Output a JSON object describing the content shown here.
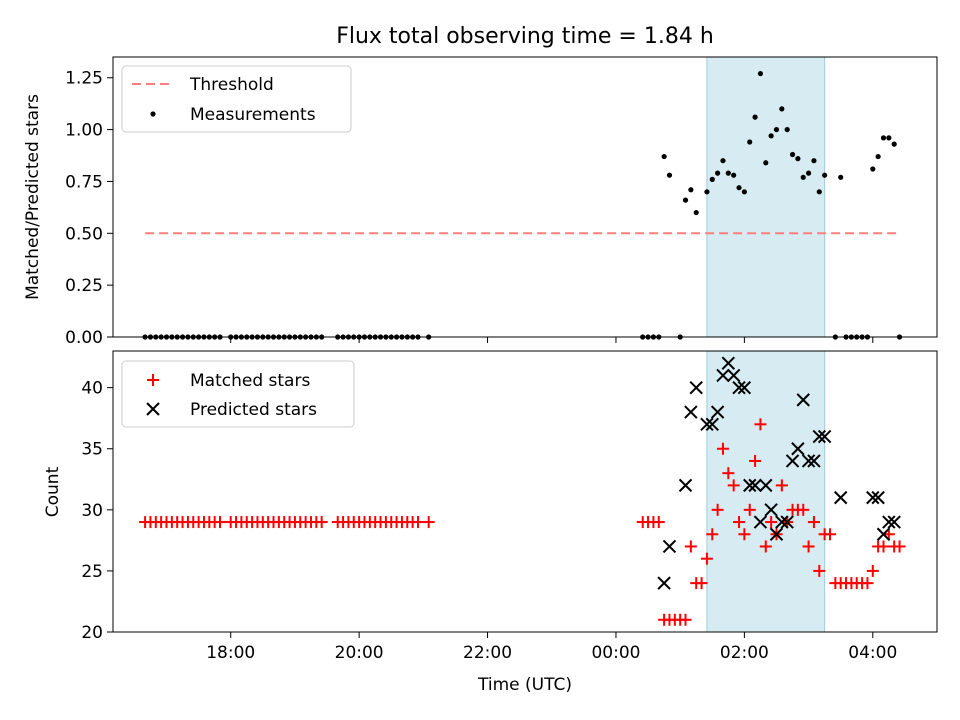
{
  "figure": {
    "title": "Flux total observing time = 1.84 h",
    "xlabel": "Time (UTC)",
    "x_ticks": [
      {
        "label": "18:00",
        "h": 18
      },
      {
        "label": "20:00",
        "h": 20
      },
      {
        "label": "22:00",
        "h": 22
      },
      {
        "label": "00:00",
        "h": 24
      },
      {
        "label": "02:00",
        "h": 26
      },
      {
        "label": "04:00",
        "h": 28
      }
    ]
  },
  "chart_data": [
    {
      "type": "scatter",
      "title": "Flux total observing time = 1.84 h",
      "ylabel": "Matched/Predicted stars",
      "xlim": [
        "16:10",
        "05:00"
      ],
      "ylim": [
        0,
        1.35
      ],
      "y_ticks": [
        "0.00",
        "0.25",
        "0.50",
        "0.75",
        "1.00",
        "1.25"
      ],
      "legend": {
        "placement": "top-left",
        "entries": [
          "Threshold",
          "Measurements"
        ]
      },
      "shaded_span": {
        "start": "01:25",
        "end": "03:15",
        "color": "#add8e6"
      },
      "threshold": {
        "name": "Threshold",
        "y": 0.5,
        "x_start": "16:40",
        "x_end": "04:25",
        "color": "#ff7f7f"
      },
      "series": [
        {
          "name": "Measurements",
          "color": "#000000",
          "points": [
            [
              "16:40",
              0
            ],
            [
              "16:45",
              0
            ],
            [
              "16:50",
              0
            ],
            [
              "16:55",
              0
            ],
            [
              "17:00",
              0
            ],
            [
              "17:05",
              0
            ],
            [
              "17:10",
              0
            ],
            [
              "17:15",
              0
            ],
            [
              "17:20",
              0
            ],
            [
              "17:25",
              0
            ],
            [
              "17:30",
              0
            ],
            [
              "17:35",
              0
            ],
            [
              "17:40",
              0
            ],
            [
              "17:45",
              0
            ],
            [
              "17:50",
              0
            ],
            [
              "18:00",
              0
            ],
            [
              "18:05",
              0
            ],
            [
              "18:10",
              0
            ],
            [
              "18:15",
              0
            ],
            [
              "18:20",
              0
            ],
            [
              "18:25",
              0
            ],
            [
              "18:30",
              0
            ],
            [
              "18:35",
              0
            ],
            [
              "18:40",
              0
            ],
            [
              "18:45",
              0
            ],
            [
              "18:50",
              0
            ],
            [
              "18:55",
              0
            ],
            [
              "19:00",
              0
            ],
            [
              "19:05",
              0
            ],
            [
              "19:10",
              0
            ],
            [
              "19:15",
              0
            ],
            [
              "19:20",
              0
            ],
            [
              "19:25",
              0
            ],
            [
              "19:40",
              0
            ],
            [
              "19:45",
              0
            ],
            [
              "19:50",
              0
            ],
            [
              "19:55",
              0
            ],
            [
              "20:00",
              0
            ],
            [
              "20:05",
              0
            ],
            [
              "20:10",
              0
            ],
            [
              "20:15",
              0
            ],
            [
              "20:20",
              0
            ],
            [
              "20:25",
              0
            ],
            [
              "20:30",
              0
            ],
            [
              "20:35",
              0
            ],
            [
              "20:40",
              0
            ],
            [
              "20:45",
              0
            ],
            [
              "20:50",
              0
            ],
            [
              "20:55",
              0
            ],
            [
              "21:05",
              0
            ],
            [
              "00:25",
              0
            ],
            [
              "00:30",
              0
            ],
            [
              "00:35",
              0
            ],
            [
              "00:40",
              0
            ],
            [
              "00:45",
              0.87
            ],
            [
              "00:50",
              0.78
            ],
            [
              "01:00",
              0
            ],
            [
              "01:05",
              0.66
            ],
            [
              "01:10",
              0.71
            ],
            [
              "01:15",
              0.6
            ],
            [
              "01:25",
              0.7
            ],
            [
              "01:30",
              0.76
            ],
            [
              "01:35",
              0.79
            ],
            [
              "01:40",
              0.85
            ],
            [
              "01:45",
              0.79
            ],
            [
              "01:50",
              0.78
            ],
            [
              "01:55",
              0.72
            ],
            [
              "02:00",
              0.7
            ],
            [
              "02:05",
              0.94
            ],
            [
              "02:10",
              1.06
            ],
            [
              "02:15",
              1.27
            ],
            [
              "02:20",
              0.84
            ],
            [
              "02:25",
              0.97
            ],
            [
              "02:30",
              1
            ],
            [
              "02:35",
              1.1
            ],
            [
              "02:40",
              1
            ],
            [
              "02:45",
              0.88
            ],
            [
              "02:50",
              0.86
            ],
            [
              "02:55",
              0.77
            ],
            [
              "03:00",
              0.79
            ],
            [
              "03:05",
              0.85
            ],
            [
              "03:10",
              0.7
            ],
            [
              "03:15",
              0.78
            ],
            [
              "03:25",
              0
            ],
            [
              "03:30",
              0.77
            ],
            [
              "03:35",
              0
            ],
            [
              "03:40",
              0
            ],
            [
              "03:45",
              0
            ],
            [
              "03:50",
              0
            ],
            [
              "03:55",
              0
            ],
            [
              "04:00",
              0.81
            ],
            [
              "04:05",
              0.87
            ],
            [
              "04:10",
              0.96
            ],
            [
              "04:15",
              0.96
            ],
            [
              "04:20",
              0.93
            ],
            [
              "04:25",
              0
            ]
          ]
        }
      ]
    },
    {
      "type": "scatter",
      "ylabel": "Count",
      "xlabel": "Time (UTC)",
      "xlim": [
        "16:10",
        "05:00"
      ],
      "ylim": [
        20,
        43
      ],
      "y_ticks": [
        "20",
        "25",
        "30",
        "35",
        "40"
      ],
      "legend": {
        "placement": "top-left",
        "entries": [
          "Matched stars",
          "Predicted stars"
        ]
      },
      "shaded_span": {
        "start": "01:25",
        "end": "03:15",
        "color": "#add8e6"
      },
      "series": [
        {
          "name": "Matched stars",
          "marker": "plus",
          "color": "#ff0000",
          "points": [
            [
              "16:40",
              29
            ],
            [
              "16:45",
              29
            ],
            [
              "16:50",
              29
            ],
            [
              "16:55",
              29
            ],
            [
              "17:00",
              29
            ],
            [
              "17:05",
              29
            ],
            [
              "17:10",
              29
            ],
            [
              "17:15",
              29
            ],
            [
              "17:20",
              29
            ],
            [
              "17:25",
              29
            ],
            [
              "17:30",
              29
            ],
            [
              "17:35",
              29
            ],
            [
              "17:40",
              29
            ],
            [
              "17:45",
              29
            ],
            [
              "17:50",
              29
            ],
            [
              "18:00",
              29
            ],
            [
              "18:05",
              29
            ],
            [
              "18:10",
              29
            ],
            [
              "18:15",
              29
            ],
            [
              "18:20",
              29
            ],
            [
              "18:25",
              29
            ],
            [
              "18:30",
              29
            ],
            [
              "18:35",
              29
            ],
            [
              "18:40",
              29
            ],
            [
              "18:45",
              29
            ],
            [
              "18:50",
              29
            ],
            [
              "18:55",
              29
            ],
            [
              "19:00",
              29
            ],
            [
              "19:05",
              29
            ],
            [
              "19:10",
              29
            ],
            [
              "19:15",
              29
            ],
            [
              "19:20",
              29
            ],
            [
              "19:25",
              29
            ],
            [
              "19:40",
              29
            ],
            [
              "19:45",
              29
            ],
            [
              "19:50",
              29
            ],
            [
              "19:55",
              29
            ],
            [
              "20:00",
              29
            ],
            [
              "20:05",
              29
            ],
            [
              "20:10",
              29
            ],
            [
              "20:15",
              29
            ],
            [
              "20:20",
              29
            ],
            [
              "20:25",
              29
            ],
            [
              "20:30",
              29
            ],
            [
              "20:35",
              29
            ],
            [
              "20:40",
              29
            ],
            [
              "20:45",
              29
            ],
            [
              "20:50",
              29
            ],
            [
              "20:55",
              29
            ],
            [
              "21:05",
              29
            ],
            [
              "00:25",
              29
            ],
            [
              "00:30",
              29
            ],
            [
              "00:35",
              29
            ],
            [
              "00:40",
              29
            ],
            [
              "00:45",
              21
            ],
            [
              "00:50",
              21
            ],
            [
              "00:55",
              21
            ],
            [
              "01:00",
              21
            ],
            [
              "01:05",
              21
            ],
            [
              "01:10",
              27
            ],
            [
              "01:15",
              24
            ],
            [
              "01:20",
              24
            ],
            [
              "01:25",
              26
            ],
            [
              "01:30",
              28
            ],
            [
              "01:35",
              30
            ],
            [
              "01:40",
              35
            ],
            [
              "01:45",
              33
            ],
            [
              "01:50",
              32
            ],
            [
              "01:55",
              29
            ],
            [
              "02:00",
              28
            ],
            [
              "02:05",
              30
            ],
            [
              "02:10",
              34
            ],
            [
              "02:15",
              37
            ],
            [
              "02:20",
              27
            ],
            [
              "02:25",
              29
            ],
            [
              "02:30",
              28
            ],
            [
              "02:35",
              32
            ],
            [
              "02:40",
              29
            ],
            [
              "02:45",
              30
            ],
            [
              "02:50",
              30
            ],
            [
              "02:55",
              30
            ],
            [
              "03:00",
              27
            ],
            [
              "03:05",
              29
            ],
            [
              "03:10",
              25
            ],
            [
              "03:15",
              28
            ],
            [
              "03:20",
              28
            ],
            [
              "03:25",
              24
            ],
            [
              "03:30",
              24
            ],
            [
              "03:35",
              24
            ],
            [
              "03:40",
              24
            ],
            [
              "03:45",
              24
            ],
            [
              "03:50",
              24
            ],
            [
              "03:55",
              24
            ],
            [
              "04:00",
              25
            ],
            [
              "04:05",
              27
            ],
            [
              "04:10",
              27
            ],
            [
              "04:15",
              28
            ],
            [
              "04:20",
              27
            ],
            [
              "04:25",
              27
            ]
          ]
        },
        {
          "name": "Predicted stars",
          "marker": "x",
          "color": "#000000",
          "points": [
            [
              "00:45",
              24
            ],
            [
              "00:50",
              27
            ],
            [
              "01:05",
              32
            ],
            [
              "01:10",
              38
            ],
            [
              "01:15",
              40
            ],
            [
              "01:25",
              37
            ],
            [
              "01:30",
              37
            ],
            [
              "01:35",
              38
            ],
            [
              "01:40",
              41
            ],
            [
              "01:45",
              42
            ],
            [
              "01:50",
              41
            ],
            [
              "01:55",
              40
            ],
            [
              "02:00",
              40
            ],
            [
              "02:05",
              32
            ],
            [
              "02:10",
              32
            ],
            [
              "02:15",
              29
            ],
            [
              "02:20",
              32
            ],
            [
              "02:25",
              30
            ],
            [
              "02:30",
              28
            ],
            [
              "02:35",
              29
            ],
            [
              "02:40",
              29
            ],
            [
              "02:45",
              34
            ],
            [
              "02:50",
              35
            ],
            [
              "02:55",
              39
            ],
            [
              "03:00",
              34
            ],
            [
              "03:05",
              34
            ],
            [
              "03:10",
              36
            ],
            [
              "03:15",
              36
            ],
            [
              "03:30",
              31
            ],
            [
              "04:00",
              31
            ],
            [
              "04:05",
              31
            ],
            [
              "04:10",
              28
            ],
            [
              "04:15",
              29
            ],
            [
              "04:20",
              29
            ]
          ]
        }
      ]
    }
  ]
}
